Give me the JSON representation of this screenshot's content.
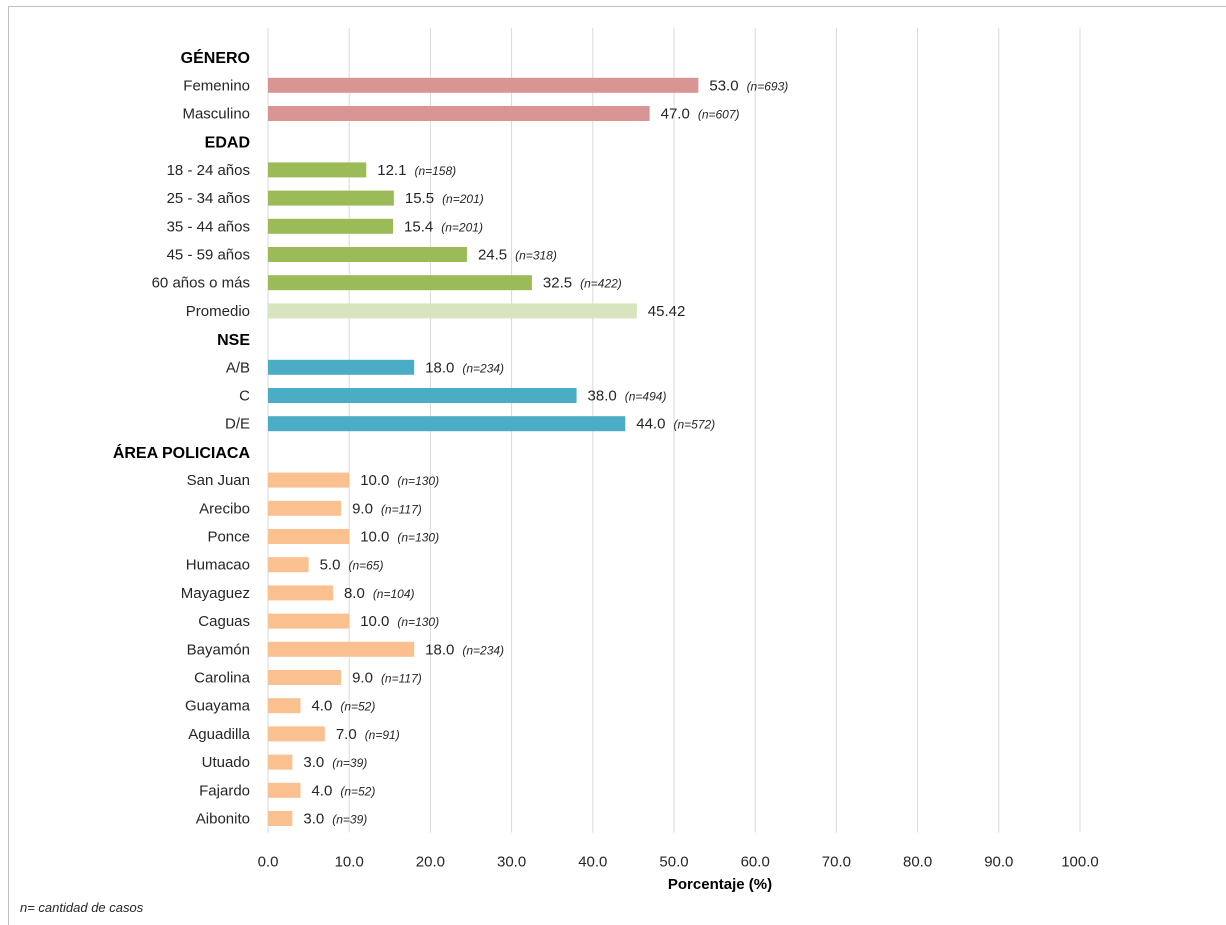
{
  "chart_data": {
    "type": "bar",
    "orientation": "horizontal",
    "xlabel": "Porcentaje  (%)",
    "xlim": [
      0,
      100
    ],
    "xticks": [
      "0.0",
      "10.0",
      "20.0",
      "30.0",
      "40.0",
      "50.0",
      "60.0",
      "70.0",
      "80.0",
      "90.0",
      "100.0"
    ],
    "grid": "vertical",
    "groups": [
      {
        "title": "GÉNERO",
        "color": "#d99594",
        "items": [
          {
            "label": "Femenino",
            "value": 53.0,
            "value_text": "53.0",
            "n": "(n=693)"
          },
          {
            "label": "Masculino",
            "value": 47.0,
            "value_text": "47.0",
            "n": "(n=607)"
          }
        ]
      },
      {
        "title": "EDAD",
        "color": "#9bbb59",
        "items": [
          {
            "label": "18 - 24 años",
            "value": 12.1,
            "value_text": "12.1",
            "n": "(n=158)"
          },
          {
            "label": "25 - 34 años",
            "value": 15.5,
            "value_text": "15.5",
            "n": "(n=201)"
          },
          {
            "label": "35 - 44 años",
            "value": 15.4,
            "value_text": "15.4",
            "n": "(n=201)"
          },
          {
            "label": "45 - 59 años",
            "value": 24.5,
            "value_text": "24.5",
            "n": "(n=318)"
          },
          {
            "label": "60 años o más",
            "value": 32.5,
            "value_text": "32.5",
            "n": "(n=422)"
          },
          {
            "label": "Promedio",
            "value": 45.42,
            "value_text": "45.42",
            "n": "",
            "color": "#d7e4bd"
          }
        ]
      },
      {
        "title": "NSE",
        "color": "#4bacc6",
        "items": [
          {
            "label": "A/B",
            "value": 18.0,
            "value_text": "18.0",
            "n": "(n=234)"
          },
          {
            "label": "C",
            "value": 38.0,
            "value_text": "38.0",
            "n": "(n=494)"
          },
          {
            "label": "D/E",
            "value": 44.0,
            "value_text": "44.0",
            "n": "(n=572)"
          }
        ]
      },
      {
        "title": "ÁREA POLICIACA",
        "color": "#fac090",
        "items": [
          {
            "label": "San Juan",
            "value": 10.0,
            "value_text": "10.0",
            "n": "(n=130)"
          },
          {
            "label": "Arecibo",
            "value": 9.0,
            "value_text": "9.0",
            "n": "(n=117)"
          },
          {
            "label": "Ponce",
            "value": 10.0,
            "value_text": "10.0",
            "n": "(n=130)"
          },
          {
            "label": "Humacao",
            "value": 5.0,
            "value_text": "5.0",
            "n": "(n=65)"
          },
          {
            "label": "Mayaguez",
            "value": 8.0,
            "value_text": "8.0",
            "n": "(n=104)"
          },
          {
            "label": "Caguas",
            "value": 10.0,
            "value_text": "10.0",
            "n": "(n=130)"
          },
          {
            "label": "Bayamón",
            "value": 18.0,
            "value_text": "18.0",
            "n": "(n=234)"
          },
          {
            "label": "Carolina",
            "value": 9.0,
            "value_text": "9.0",
            "n": "(n=117)"
          },
          {
            "label": "Guayama",
            "value": 4.0,
            "value_text": "4.0",
            "n": "(n=52)"
          },
          {
            "label": "Aguadilla",
            "value": 7.0,
            "value_text": "7.0",
            "n": "(n=91)"
          },
          {
            "label": "Utuado",
            "value": 3.0,
            "value_text": "3.0",
            "n": "(n=39)"
          },
          {
            "label": "Fajardo",
            "value": 4.0,
            "value_text": "4.0",
            "n": "(n=52)"
          },
          {
            "label": "Aibonito",
            "value": 3.0,
            "value_text": "3.0",
            "n": "(n=39)"
          }
        ]
      }
    ]
  },
  "footnote": "n= cantidad de casos"
}
